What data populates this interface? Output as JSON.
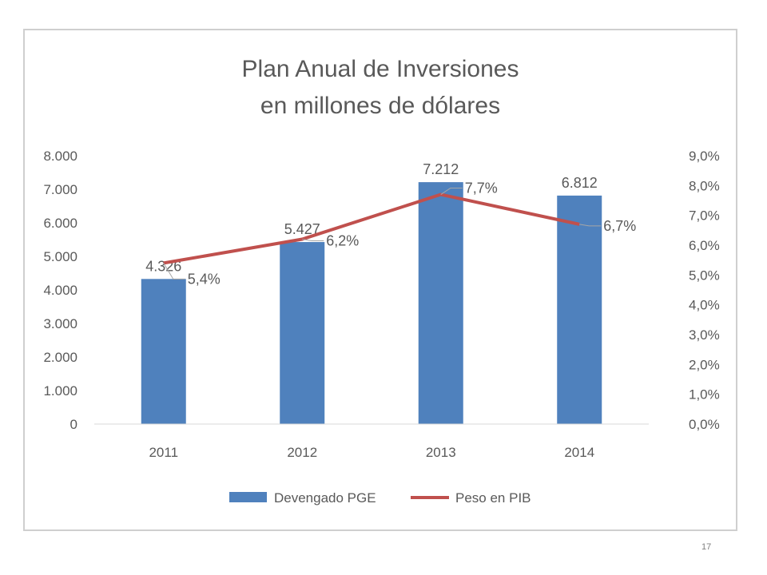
{
  "slide": {
    "page_number": "17"
  },
  "chart_data": {
    "type": "bar",
    "title": [
      "Plan Anual de Inversiones",
      "en millones de dólares"
    ],
    "categories": [
      "2011",
      "2012",
      "2013",
      "2014"
    ],
    "series": [
      {
        "name": "Devengado PGE",
        "type": "bar",
        "axis": "left",
        "color": "#4f81bd",
        "values": [
          4326,
          5427,
          7212,
          6812
        ],
        "labels": [
          "4.326",
          "5.427",
          "7.212",
          "6.812"
        ]
      },
      {
        "name": "Peso en PIB",
        "type": "line",
        "axis": "right",
        "color": "#c0504d",
        "values": [
          5.4,
          6.2,
          7.7,
          6.7
        ],
        "labels": [
          "5,4%",
          "6,2%",
          "7,7%",
          "6,7%"
        ]
      }
    ],
    "y_left": {
      "ylim": [
        0,
        8000
      ],
      "ticks": [
        0,
        1000,
        2000,
        3000,
        4000,
        5000,
        6000,
        7000,
        8000
      ],
      "tick_labels": [
        "0",
        "1.000",
        "2.000",
        "3.000",
        "4.000",
        "5.000",
        "6.000",
        "7.000",
        "8.000"
      ]
    },
    "y_right": {
      "ylim": [
        0,
        9
      ],
      "ticks": [
        0,
        1,
        2,
        3,
        4,
        5,
        6,
        7,
        8,
        9
      ],
      "tick_labels": [
        "0,0%",
        "1,0%",
        "2,0%",
        "3,0%",
        "4,0%",
        "5,0%",
        "6,0%",
        "7,0%",
        "8,0%",
        "9,0%"
      ]
    },
    "grid": false,
    "legend_position": "bottom"
  }
}
